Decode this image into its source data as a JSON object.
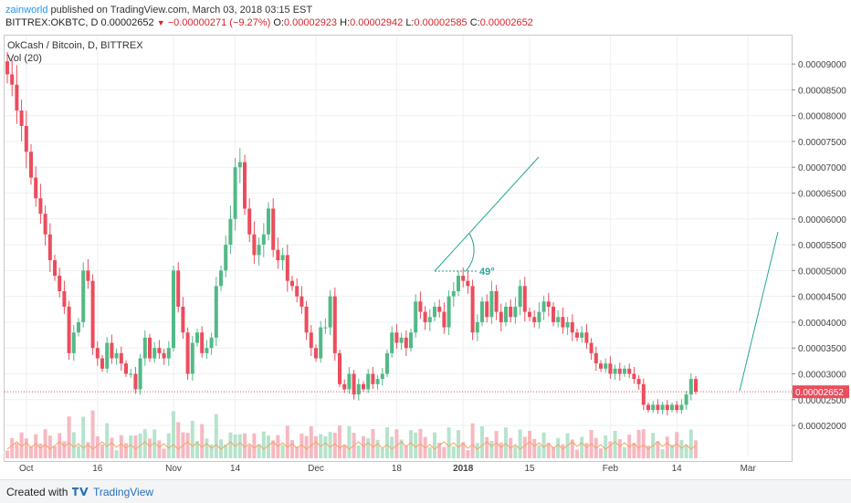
{
  "header": {
    "publisher": "zainworld",
    "published_text": "published on TradingView.com, March 03, 2018 03:15 EST",
    "symbol_text": "BITTREX:OKBTC, D",
    "last": "0.00002652",
    "change": "−0.00000271 (−9.27%)",
    "o_label": "O:",
    "o": "0.00002923",
    "h_label": "H:",
    "h": "0.00002942",
    "l_label": "L:",
    "l": "0.00002585",
    "c_label": "C:",
    "c": "0.00002652"
  },
  "legend": {
    "title": "OkCash / Bitcoin, D, BITTREX",
    "vol": "Vol (20)"
  },
  "annotation": {
    "angle": "49°"
  },
  "footer": {
    "created": "Created with",
    "brand": "TradingView"
  },
  "colors": {
    "up": "#53b987",
    "down": "#eb4d5c",
    "up_vol": "#b7e3cd",
    "down_vol": "#f6b9c1",
    "ma": "#f7a35c",
    "drawing": "#26a69a",
    "price_line": "#eb4d5c",
    "price_tag": "#eb4d5c"
  },
  "chart_data": {
    "type": "candlestick",
    "title": "OkCash / Bitcoin, D, BITTREX",
    "ylim": [
      1.4e-05,
      9.55e-05
    ],
    "y_ticks": [
      "0.00002000",
      "0.00002500",
      "0.00003000",
      "0.00003500",
      "0.00004000",
      "0.00004500",
      "0.00005000",
      "0.00005500",
      "0.00006000",
      "0.00006500",
      "0.00007000",
      "0.00007500",
      "0.00008000",
      "0.00008500",
      "0.00009000"
    ],
    "y_tick_values": [
      2e-05,
      2.5e-05,
      3e-05,
      3.5e-05,
      4e-05,
      4.5e-05,
      5e-05,
      5.5e-05,
      6e-05,
      6.5e-05,
      7e-05,
      7.5e-05,
      8e-05,
      8.5e-05,
      9e-05
    ],
    "x_ticks": [
      {
        "label": "Oct",
        "i": 4
      },
      {
        "label": "16",
        "i": 19
      },
      {
        "label": "Nov",
        "i": 35
      },
      {
        "label": "14",
        "i": 48
      },
      {
        "label": "Dec",
        "i": 65
      },
      {
        "label": "18",
        "i": 82
      },
      {
        "label": "2018",
        "i": 96
      },
      {
        "label": "15",
        "i": 110
      },
      {
        "label": "Feb",
        "i": 127
      },
      {
        "label": "14",
        "i": 141
      },
      {
        "label": "Mar",
        "i": 156
      }
    ],
    "last_price": 2.652e-05,
    "last_price_label": "0.00002652",
    "closes": [
      8.8e-05,
      8.6e-05,
      8.1e-05,
      7.8e-05,
      7.3e-05,
      6.8e-05,
      6.4e-05,
      6.1e-05,
      5.7e-05,
      5.2e-05,
      4.9e-05,
      4.6e-05,
      4.3e-05,
      3.4e-05,
      3.8e-05,
      4e-05,
      5e-05,
      4.8e-05,
      3.5e-05,
      3.3e-05,
      3.1e-05,
      3.6e-05,
      3.3e-05,
      3.4e-05,
      3.2e-05,
      3e-05,
      3e-05,
      2.7e-05,
      3.3e-05,
      3.7e-05,
      3.3e-05,
      3.5e-05,
      3.4e-05,
      3.3e-05,
      3.5e-05,
      5e-05,
      4.3e-05,
      3.8e-05,
      3e-05,
      3.6e-05,
      3.8e-05,
      3.4e-05,
      3.5e-05,
      3.7e-05,
      4.7e-05,
      5e-05,
      5.5e-05,
      6e-05,
      7e-05,
      7.1e-05,
      6.2e-05,
      5.7e-05,
      5.3e-05,
      5.5e-05,
      5.7e-05,
      6.2e-05,
      5.4e-05,
      5.2e-05,
      5.3e-05,
      4.8e-05,
      4.7e-05,
      4.5e-05,
      4.3e-05,
      3.8e-05,
      3.5e-05,
      3.3e-05,
      3.9e-05,
      3.9e-05,
      4.5e-05,
      3.4e-05,
      2.8e-05,
      2.7e-05,
      3e-05,
      2.6e-05,
      2.8e-05,
      2.7e-05,
      3e-05,
      2.8e-05,
      2.9e-05,
      3e-05,
      3.4e-05,
      3.8e-05,
      3.6e-05,
      3.7e-05,
      3.5e-05,
      3.8e-05,
      4.4e-05,
      4.2e-05,
      4e-05,
      4.1e-05,
      4.3e-05,
      4.2e-05,
      3.9e-05,
      4.5e-05,
      4.6e-05,
      4.9e-05,
      4.8e-05,
      4.7e-05,
      3.8e-05,
      4e-05,
      4.4e-05,
      4.1e-05,
      4.6e-05,
      4.2e-05,
      4e-05,
      4.3e-05,
      4.1e-05,
      4.3e-05,
      4.7e-05,
      4.2e-05,
      4.1e-05,
      4e-05,
      4.2e-05,
      4.4e-05,
      4.3e-05,
      4e-05,
      4.1e-05,
      3.9e-05,
      4e-05,
      3.8e-05,
      3.7e-05,
      3.8e-05,
      3.6e-05,
      3.4e-05,
      3.2e-05,
      3.1e-05,
      3.2e-05,
      3e-05,
      3.1e-05,
      3e-05,
      3.1e-05,
      3e-05,
      2.9e-05,
      2.8e-05,
      2.4e-05,
      2.3e-05,
      2.4e-05,
      2.3e-05,
      2.4e-05,
      2.3e-05,
      2.4e-05,
      2.3e-05,
      2.4e-05,
      2.6e-05,
      2.9e-05,
      2.652e-05
    ],
    "volume_ma": "line"
  }
}
